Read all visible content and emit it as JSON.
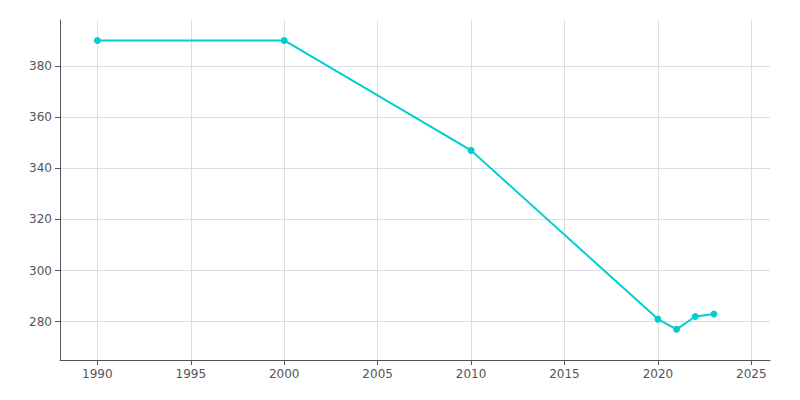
{
  "chart_data": {
    "type": "line",
    "x": [
      1990,
      2000,
      2010,
      2020,
      2021,
      2022,
      2023
    ],
    "values": [
      390,
      390,
      347,
      281,
      277,
      282,
      283
    ],
    "color": "#00CED1",
    "marker": "circle",
    "xlim": [
      1988,
      2026
    ],
    "xticks": [
      1990,
      1995,
      2000,
      2005,
      2010,
      2015,
      2020,
      2025
    ],
    "ylim": [
      265,
      398
    ],
    "yticks": [
      280,
      300,
      320,
      340,
      360,
      380
    ],
    "grid": true
  }
}
